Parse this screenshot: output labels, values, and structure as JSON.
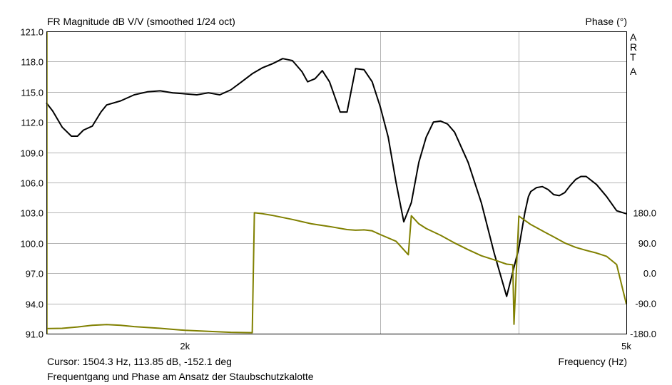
{
  "header": {
    "title": "FR Magnitude dB V/V (smoothed 1/24 oct)",
    "phase_label": "Phase (°)",
    "arta_letters": [
      "A",
      "R",
      "T",
      "A"
    ]
  },
  "footer": {
    "cursor": "Cursor: 1504.3 Hz, 113.85 dB, -152.1 deg",
    "caption": "Frequentgang und Phase am Ansatz der Staubschutzkalotte",
    "xlabel": "Frequency (Hz)"
  },
  "colors": {
    "magnitude": "#000000",
    "phase": "#808000",
    "grid": "#b4b4b4",
    "frame": "#000000",
    "background": "#ffffff"
  },
  "chart_data": {
    "type": "line",
    "title": "FR Magnitude dB V/V (smoothed 1/24 oct)",
    "xlabel": "Frequency (Hz)",
    "ylabel": "",
    "y2label": "Phase (°)",
    "x_scale": "log",
    "xlim": [
      1500,
      5000
    ],
    "ylim": [
      91.0,
      121.0
    ],
    "y2lim": [
      -180,
      180
    ],
    "x_ticks": [
      {
        "value": 2000,
        "label": "2k"
      },
      {
        "value": 5000,
        "label": "5k"
      }
    ],
    "x_gridlines": [
      2000,
      3000,
      4000
    ],
    "y_ticks": [
      "91.0",
      "94.0",
      "97.0",
      "100.0",
      "103.0",
      "106.0",
      "109.0",
      "112.0",
      "115.0",
      "118.0",
      "121.0"
    ],
    "y2_ticks": [
      "-180.0",
      "-90.0",
      "0.0",
      "90.0",
      "180.0"
    ],
    "grid": true,
    "series": [
      {
        "key": "magnitude",
        "axis": "left",
        "color": "#000000",
        "x": [
          1500,
          1520,
          1550,
          1580,
          1600,
          1620,
          1650,
          1680,
          1700,
          1750,
          1800,
          1850,
          1900,
          1950,
          2000,
          2050,
          2100,
          2150,
          2200,
          2250,
          2300,
          2350,
          2400,
          2450,
          2500,
          2550,
          2580,
          2620,
          2660,
          2700,
          2720,
          2760,
          2800,
          2850,
          2900,
          2950,
          3000,
          3050,
          3100,
          3150,
          3200,
          3250,
          3300,
          3350,
          3400,
          3450,
          3500,
          3600,
          3700,
          3800,
          3900,
          4000,
          4050,
          4080,
          4100,
          4150,
          4200,
          4250,
          4300,
          4350,
          4400,
          4450,
          4500,
          4550,
          4600,
          4700,
          4800,
          4900,
          5000
        ],
        "y": [
          113.9,
          113.1,
          111.5,
          110.6,
          110.6,
          111.2,
          111.6,
          113.0,
          113.7,
          114.1,
          114.7,
          115.0,
          115.1,
          114.9,
          114.8,
          114.7,
          114.9,
          114.7,
          115.2,
          116.0,
          116.8,
          117.4,
          117.8,
          118.3,
          118.1,
          117.0,
          116.0,
          116.3,
          117.1,
          116.0,
          115.0,
          113.0,
          113.0,
          117.3,
          117.2,
          116.0,
          113.5,
          110.5,
          106.0,
          102.1,
          104.0,
          108.0,
          110.5,
          112.0,
          112.1,
          111.8,
          111.0,
          108.0,
          104.0,
          99.0,
          94.7,
          99.5,
          103.0,
          104.6,
          105.1,
          105.5,
          105.6,
          105.3,
          104.8,
          104.7,
          105.0,
          105.7,
          106.3,
          106.6,
          106.6,
          105.8,
          104.6,
          103.2,
          102.9
        ]
      },
      {
        "key": "phase",
        "axis": "right",
        "color": "#808000",
        "x": [
          1500,
          1550,
          1600,
          1650,
          1700,
          1750,
          1800,
          1900,
          2000,
          2100,
          2200,
          2300,
          2310,
          2350,
          2400,
          2500,
          2600,
          2700,
          2800,
          2850,
          2900,
          2950,
          3000,
          3100,
          3180,
          3200,
          3250,
          3300,
          3400,
          3500,
          3600,
          3700,
          3800,
          3900,
          3950,
          3960,
          4000,
          4100,
          4200,
          4300,
          4400,
          4500,
          4600,
          4700,
          4800,
          4900,
          5000
        ],
        "y": [
          -165,
          -164,
          -160,
          -155,
          -153,
          -155,
          -159,
          -164,
          -170,
          -173,
          -176,
          -177,
          180,
          177,
          172,
          160,
          147,
          139,
          130,
          128,
          129,
          126,
          115,
          95,
          55,
          171,
          147,
          133,
          113,
          90,
          70,
          52,
          40,
          27,
          25,
          -152,
          170,
          145,
          126,
          108,
          90,
          77,
          68,
          60,
          50,
          26,
          -92
        ]
      }
    ]
  }
}
